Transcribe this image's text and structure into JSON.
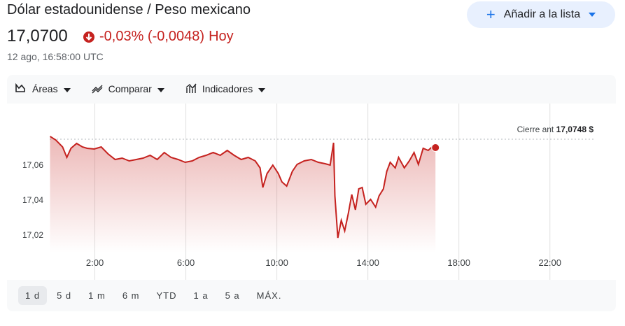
{
  "header": {
    "title": "Dólar estadounidense / Peso mexicano",
    "price": "17,0700",
    "change": "-0,03% (-0,0048)",
    "period": "Hoy",
    "timestamp": "12 ago, 16:58:00 UTC"
  },
  "watchlist_button": "Añadir a la lista",
  "toolbar": [
    "Áreas",
    "Comparar",
    "Indicadores"
  ],
  "ranges": [
    "1 d",
    "5 d",
    "1 m",
    "6 m",
    "YTD",
    "1 a",
    "5 a",
    "MÁX."
  ],
  "selected_range": 0,
  "chart_data": {
    "type": "area",
    "color": "#c5221f",
    "grid": "x",
    "x": [
      0.03,
      0.28,
      0.58,
      0.77,
      0.95,
      1.2,
      1.45,
      1.66,
      1.97,
      2.28,
      2.58,
      2.89,
      3.2,
      3.51,
      3.82,
      4.12,
      4.43,
      4.74,
      5.05,
      5.35,
      5.66,
      5.97,
      6.28,
      6.58,
      6.89,
      7.2,
      7.51,
      7.82,
      8.12,
      8.43,
      8.74,
      9.05,
      9.26,
      9.38,
      9.57,
      9.82,
      10.06,
      10.22,
      10.43,
      10.68,
      10.89,
      11.2,
      11.51,
      11.82,
      12.12,
      12.34,
      12.49,
      12.55,
      12.68,
      12.83,
      12.98,
      13.14,
      13.29,
      13.45,
      13.6,
      13.75,
      13.91,
      14.12,
      14.34,
      14.49,
      14.68,
      14.83,
      14.98,
      15.2,
      15.35,
      15.6,
      15.82,
      16.03,
      16.22,
      16.43,
      16.65,
      16.89,
      16.97
    ],
    "values": [
      17.0764,
      17.0744,
      17.0704,
      17.0644,
      17.0696,
      17.0724,
      17.0704,
      17.0696,
      17.0692,
      17.0704,
      17.0664,
      17.0632,
      17.064,
      17.0624,
      17.0632,
      17.064,
      17.0656,
      17.0632,
      17.0672,
      17.0644,
      17.0632,
      17.0616,
      17.0624,
      17.0644,
      17.0656,
      17.0672,
      17.0656,
      17.0684,
      17.0656,
      17.0632,
      17.0644,
      17.0624,
      17.0584,
      17.0472,
      17.0552,
      17.06,
      17.0552,
      17.0504,
      17.048,
      17.0564,
      17.0604,
      17.0624,
      17.0632,
      17.0616,
      17.0608,
      17.06,
      17.0728,
      17.0424,
      17.0184,
      17.0284,
      17.0224,
      17.0324,
      17.0432,
      17.0344,
      17.0464,
      17.0472,
      17.0376,
      17.0404,
      17.036,
      17.0424,
      17.0464,
      17.0564,
      17.0616,
      17.0584,
      17.0644,
      17.0584,
      17.0624,
      17.0672,
      17.0604,
      17.0696,
      17.0684,
      17.0712,
      17.07
    ],
    "xlim": [
      -1.8,
      24.9
    ],
    "ylim": [
      17.01,
      17.094
    ],
    "xticks": [
      {
        "value": 2,
        "label": "2:00"
      },
      {
        "value": 6,
        "label": "6:00"
      },
      {
        "value": 10,
        "label": "10:00"
      },
      {
        "value": 14,
        "label": "14:00"
      },
      {
        "value": 18,
        "label": "18:00"
      },
      {
        "value": 22,
        "label": "22:00"
      }
    ],
    "yticks": [
      {
        "value": 17.02,
        "label": "17,02"
      },
      {
        "value": 17.04,
        "label": "17,04"
      },
      {
        "value": 17.06,
        "label": "17,06"
      }
    ],
    "reference_line": {
      "label": "Cierre ant",
      "value": 17.0748,
      "value_label": "17,0748 $"
    }
  }
}
